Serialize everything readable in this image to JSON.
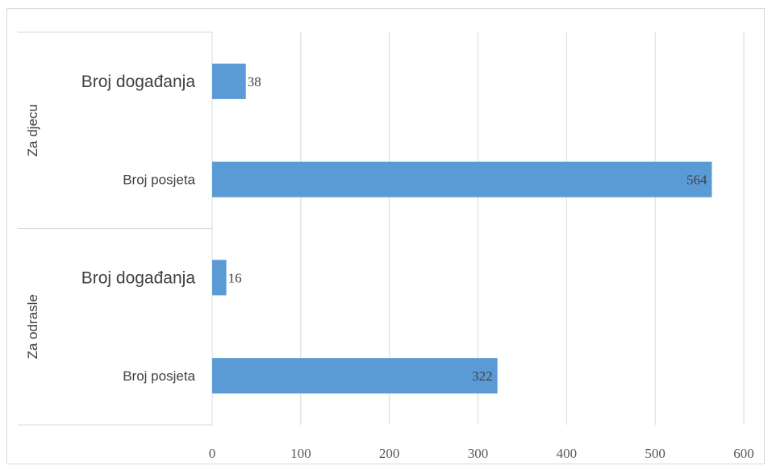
{
  "chart_data": {
    "type": "bar",
    "orientation": "horizontal",
    "title": "",
    "xlabel": "",
    "ylabel": "",
    "xlim": [
      0,
      600
    ],
    "x_ticks": [
      "0",
      "100",
      "200",
      "300",
      "400",
      "500",
      "600"
    ],
    "grid": true,
    "legend": "none",
    "bar_color": "#5B9BD5",
    "groups": [
      {
        "name": "Za djecu",
        "categories": [
          "Broj događanja",
          "Broj posjeta"
        ],
        "values": [
          38,
          564
        ]
      },
      {
        "name": "Za odrasle",
        "categories": [
          "Broj događanja",
          "Broj posjeta"
        ],
        "values": [
          16,
          322
        ]
      }
    ]
  }
}
